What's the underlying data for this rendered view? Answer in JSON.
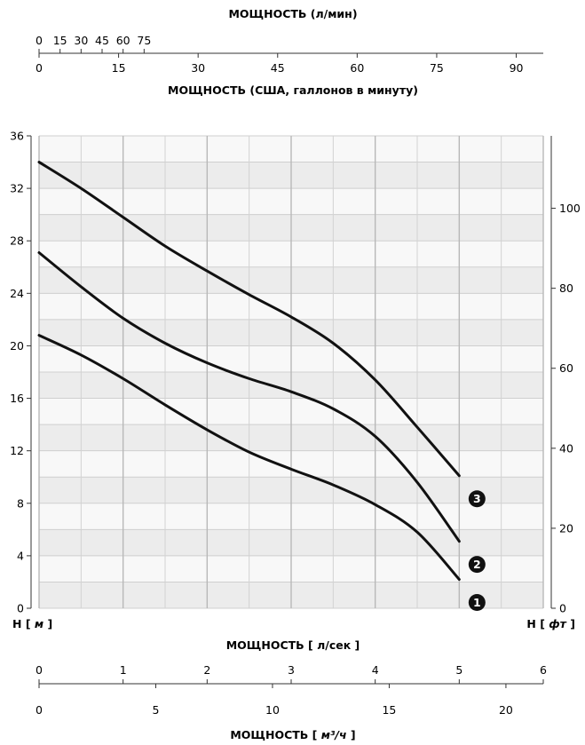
{
  "chart_data": {
    "type": "line",
    "top_axes": {
      "lpm": {
        "title": "МОЩНОСТЬ (л/мин)",
        "ticks": [
          0,
          15,
          30,
          45,
          60,
          75
        ],
        "tick_labels": [
          "0",
          "15",
          "30",
          "45",
          "60",
          "75"
        ]
      },
      "usgpm": {
        "title": "МОЩНОСТЬ (США, галлонов в минуту)",
        "ticks": [
          0,
          15,
          30,
          45,
          60,
          75,
          90
        ],
        "tick_labels": [
          "0",
          "15",
          "30",
          "45",
          "60",
          "75",
          "90"
        ]
      }
    },
    "y_left": {
      "label_prefix": "H",
      "label_unit": "м",
      "range": [
        0,
        36
      ],
      "ticks": [
        0,
        4,
        8,
        12,
        16,
        20,
        24,
        28,
        32,
        36
      ],
      "tick_labels": [
        "0",
        "4",
        "8",
        "12",
        "16",
        "20",
        "24",
        "28",
        "32",
        "36"
      ]
    },
    "y_right": {
      "label_prefix": "H",
      "label_unit": "фт",
      "ticks": [
        0,
        20,
        40,
        60,
        80,
        100
      ],
      "tick_labels": [
        "0",
        "20",
        "40",
        "60",
        "80",
        "100"
      ]
    },
    "bottom_axes": {
      "lps": {
        "title": "МОЩНОСТЬ [ л/сек ]",
        "range": [
          0,
          6
        ],
        "ticks": [
          0,
          1,
          2,
          3,
          4,
          5,
          6
        ],
        "tick_labels": [
          "0",
          "1",
          "2",
          "3",
          "4",
          "5",
          "6"
        ]
      },
      "m3h": {
        "title_text": "МОЩНОСТЬ [",
        "title_unit": "м³/ч",
        "title_close": "]",
        "ticks": [
          0,
          5,
          10,
          15,
          20
        ],
        "tick_labels": [
          "0",
          "5",
          "10",
          "15",
          "20"
        ]
      }
    },
    "grid": true,
    "series": [
      {
        "label": "1",
        "x": [
          0,
          0.5,
          1,
          1.5,
          2,
          2.5,
          3,
          3.5,
          4,
          4.5,
          5
        ],
        "y": [
          20.8,
          19.3,
          17.5,
          15.5,
          13.6,
          11.9,
          10.6,
          9.4,
          7.9,
          5.8,
          2.2
        ]
      },
      {
        "label": "2",
        "x": [
          0,
          0.5,
          1,
          1.5,
          2,
          2.5,
          3,
          3.5,
          4,
          4.5,
          5
        ],
        "y": [
          27.1,
          24.5,
          22.1,
          20.2,
          18.7,
          17.5,
          16.5,
          15.2,
          13.1,
          9.6,
          5.1
        ]
      },
      {
        "label": "3",
        "x": [
          0,
          0.5,
          1,
          1.5,
          2,
          2.5,
          3,
          3.5,
          4,
          4.5,
          5
        ],
        "y": [
          34.0,
          32.0,
          29.8,
          27.6,
          25.7,
          23.9,
          22.2,
          20.2,
          17.4,
          13.8,
          10.1
        ]
      }
    ]
  }
}
